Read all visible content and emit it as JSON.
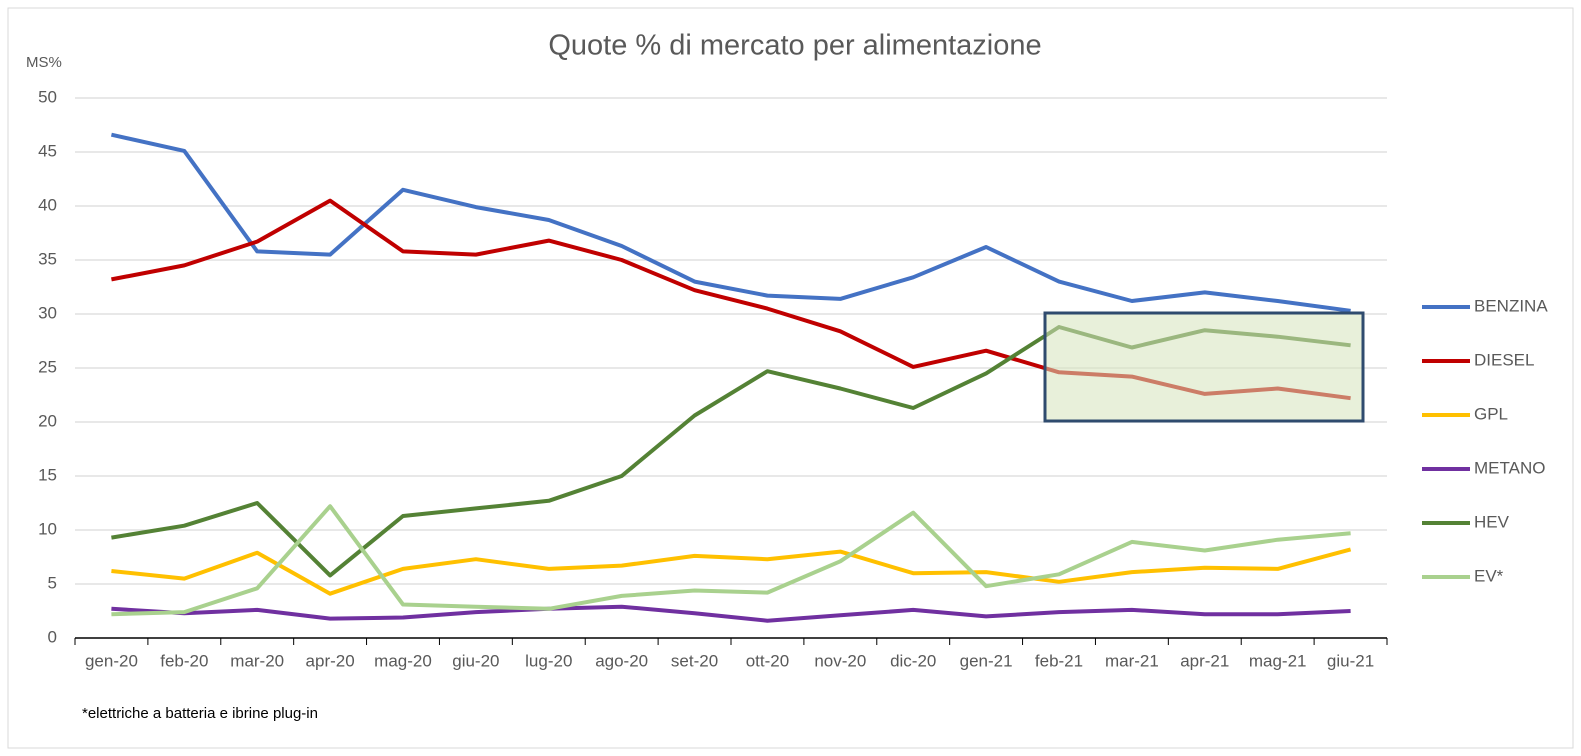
{
  "chart_data": {
    "type": "line",
    "title": "Quote % di mercato per alimentazione",
    "y_label": "MS%",
    "note": "*elettriche a batteria e ibrine plug-in",
    "categories": [
      "gen-20",
      "feb-20",
      "mar-20",
      "apr-20",
      "mag-20",
      "giu-20",
      "lug-20",
      "ago-20",
      "set-20",
      "ott-20",
      "nov-20",
      "dic-20",
      "gen-21",
      "feb-21",
      "mar-21",
      "apr-21",
      "mag-21",
      "giu-21"
    ],
    "series": [
      {
        "name": "BENZINA",
        "color": "#4472c4",
        "values": [
          46.6,
          45.1,
          35.8,
          35.5,
          41.5,
          39.9,
          38.7,
          36.3,
          33.0,
          31.7,
          31.4,
          33.4,
          36.2,
          33.0,
          31.2,
          32.0,
          31.2,
          30.3
        ]
      },
      {
        "name": "DIESEL",
        "color": "#c00000",
        "values": [
          33.2,
          34.5,
          36.7,
          40.5,
          35.8,
          35.5,
          36.8,
          35.0,
          32.2,
          30.5,
          28.4,
          25.1,
          26.6,
          24.6,
          24.2,
          22.6,
          23.1,
          22.2
        ]
      },
      {
        "name": "GPL",
        "color": "#ffc000",
        "values": [
          6.2,
          5.5,
          7.9,
          4.1,
          6.4,
          7.3,
          6.4,
          6.7,
          7.6,
          7.3,
          8.0,
          6.0,
          6.1,
          5.2,
          6.1,
          6.5,
          6.4,
          8.2
        ]
      },
      {
        "name": "METANO",
        "color": "#7030a0",
        "values": [
          2.7,
          2.3,
          2.6,
          1.8,
          1.9,
          2.4,
          2.7,
          2.9,
          2.3,
          1.6,
          2.1,
          2.6,
          2.0,
          2.4,
          2.6,
          2.2,
          2.2,
          2.5
        ]
      },
      {
        "name": "HEV",
        "color": "#548235",
        "values": [
          9.3,
          10.4,
          12.5,
          5.8,
          11.3,
          12.0,
          12.7,
          15.0,
          20.6,
          24.7,
          23.1,
          21.3,
          24.5,
          28.8,
          26.9,
          28.5,
          27.9,
          27.1
        ]
      },
      {
        "name": "EV*",
        "color": "#a9d18e",
        "values": [
          2.2,
          2.4,
          4.6,
          12.2,
          3.1,
          2.9,
          2.7,
          3.9,
          4.4,
          4.2,
          7.1,
          11.6,
          4.8,
          5.9,
          8.9,
          8.1,
          9.1,
          9.7
        ]
      }
    ],
    "ylim": [
      0,
      50
    ],
    "yticks": [
      0,
      5,
      10,
      15,
      20,
      25,
      30,
      35,
      40,
      45,
      50
    ],
    "grid": true,
    "legend": "right"
  }
}
